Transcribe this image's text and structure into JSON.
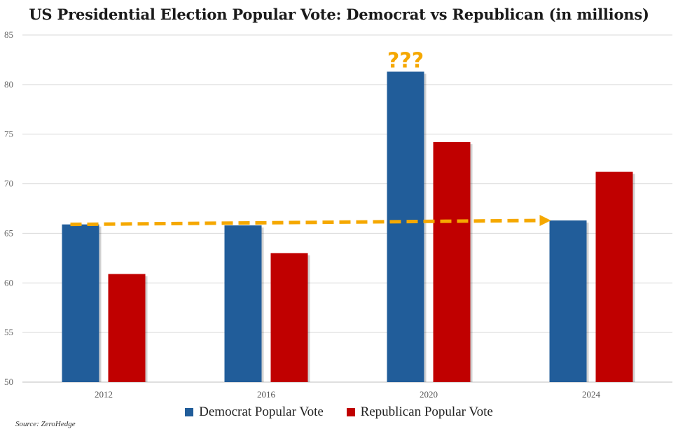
{
  "title": "US Presidential Election Popular Vote: Democrat vs Republican (in millions)",
  "source": "Source: ZeroHedge",
  "colors": {
    "democrat": "#215d9a",
    "republican": "#c00000",
    "arrow": "#f5a800",
    "grid": "#d9d9d9",
    "axis": "#bfbfbf"
  },
  "annotation": {
    "text": "???"
  },
  "chart_data": {
    "type": "bar",
    "categories": [
      "2012",
      "2016",
      "2020",
      "2024"
    ],
    "series": [
      {
        "name": "Democrat Popular Vote",
        "color": "#215d9a",
        "values": [
          65.9,
          65.8,
          81.3,
          66.3
        ]
      },
      {
        "name": "Republican Popular Vote",
        "color": "#c00000",
        "values": [
          60.9,
          63.0,
          74.2,
          71.2
        ]
      }
    ],
    "ylim": [
      50,
      85
    ],
    "yticks": [
      50,
      55,
      60,
      65,
      70,
      75,
      80,
      85
    ],
    "grid": true,
    "legend": "bottom",
    "trend_arrow": {
      "from_category": "2012",
      "to_category": "2024",
      "start_value": 65.9,
      "end_value": 66.3
    },
    "annotations": [
      {
        "text": "???",
        "category": "2020",
        "series": "Democrat Popular Vote"
      }
    ]
  }
}
